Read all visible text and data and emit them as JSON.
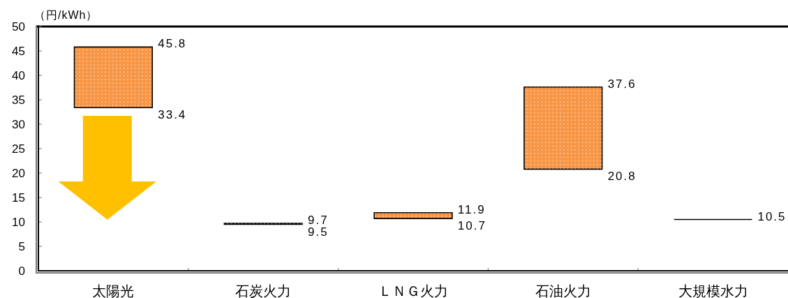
{
  "chart_data": {
    "type": "bar",
    "ylabel": "（円/kWh）",
    "categories": [
      "太陽光",
      "石炭火力",
      "ＬＮＧ火力",
      "石油火力",
      "大規模水力"
    ],
    "base": [
      33.4,
      9.5,
      10.7,
      20.8,
      10.5
    ],
    "values": [
      12.4,
      0.2,
      1.2,
      16.8,
      0
    ],
    "colors": [
      "#f79646",
      "#000000",
      "#f79646",
      "#f79646",
      "#000000"
    ],
    "ylim": [
      0,
      50
    ],
    "yticks": [
      0,
      5,
      10,
      15,
      20,
      25,
      30,
      35,
      40,
      45,
      50
    ],
    "annotations": [
      "45.8",
      "33.4",
      "9.7",
      "9.5",
      "11.9",
      "10.7",
      "37.6",
      "20.8",
      "10.5"
    ]
  }
}
